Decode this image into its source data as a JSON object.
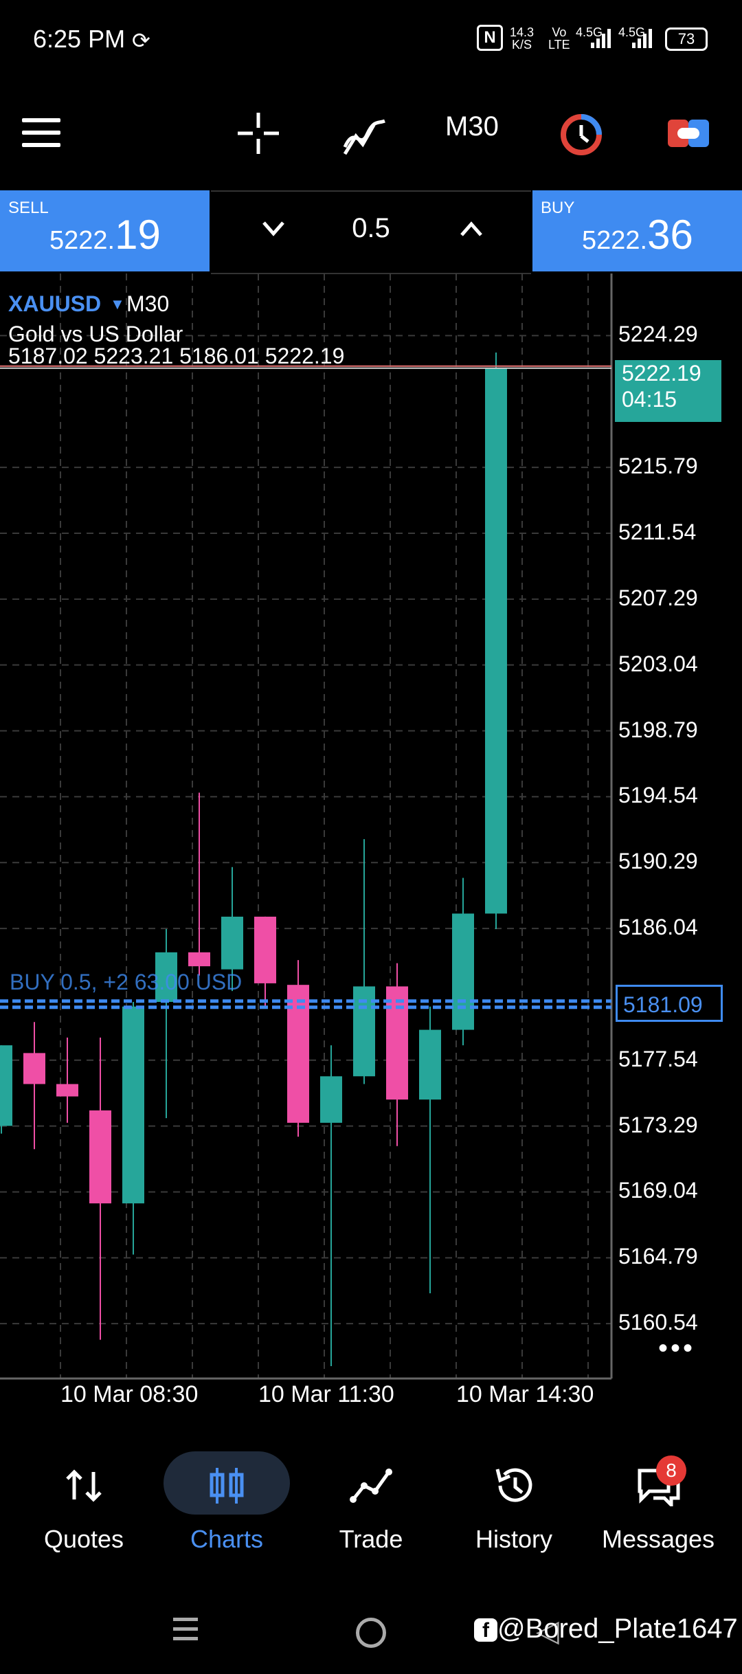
{
  "status_bar": {
    "time": "6:25 PM",
    "net_speed_top": "14.3",
    "net_speed_bottom": "K/S",
    "volte_top": "Vo",
    "volte_bottom": "LTE",
    "sim1_type": "4.5G",
    "sim2_type": "4.5G",
    "battery": "73"
  },
  "toolbar": {
    "timeframe": "M30"
  },
  "trade_panel": {
    "sell_label": "SELL",
    "sell_price_small": "5222.",
    "sell_price_big": "19",
    "lot": "0.5",
    "buy_label": "BUY",
    "buy_price_small": "5222.",
    "buy_price_big": "36"
  },
  "chart": {
    "symbol": "XAUUSD",
    "timeframe": "M30",
    "description": "Gold vs US Dollar",
    "ohlc": "5187.02 5223.21 5186.01 5222.19",
    "current_price": "5222.19",
    "countdown": "04:15",
    "buy_position_label": "BUY 0.5, +2 ",
    "buy_position_pnl": "63.00 USD",
    "buy_position_price": "5181.09",
    "y_labels": [
      "5224.29",
      "5215.79",
      "5211.54",
      "5207.29",
      "5203.04",
      "5198.79",
      "5194.54",
      "5190.29",
      "5186.04",
      "5177.54",
      "5173.29",
      "5169.04",
      "5164.79",
      "5160.54"
    ],
    "x_labels": [
      "10 Mar 08:30",
      "10 Mar 11:30",
      "10 Mar 14:30"
    ],
    "colors": {
      "bull": "#26a69a",
      "bear": "#ef4fa6",
      "grid": "#3a3a3a",
      "accent": "#3f8bf1"
    }
  },
  "chart_data": {
    "type": "candlestick",
    "symbol": "XAUUSD",
    "interval": "M30",
    "ylim": [
      5157,
      5228.3
    ],
    "candles": [
      {
        "o": 5173.3,
        "h": 5178.5,
        "l": 5172.8,
        "c": 5178.5
      },
      {
        "o": 5178.0,
        "h": 5180.0,
        "l": 5171.8,
        "c": 5176.0
      },
      {
        "o": 5176.0,
        "h": 5179.0,
        "l": 5173.5,
        "c": 5175.2
      },
      {
        "o": 5174.3,
        "h": 5179.0,
        "l": 5159.5,
        "c": 5168.3
      },
      {
        "o": 5168.3,
        "h": 5181.3,
        "l": 5165.0,
        "c": 5181.0
      },
      {
        "o": 5181.3,
        "h": 5186.0,
        "l": 5173.8,
        "c": 5184.5
      },
      {
        "o": 5184.5,
        "h": 5194.8,
        "l": 5183.0,
        "c": 5183.6
      },
      {
        "o": 5183.4,
        "h": 5190.0,
        "l": 5182.0,
        "c": 5186.8
      },
      {
        "o": 5186.8,
        "h": 5186.8,
        "l": 5181.0,
        "c": 5182.5
      },
      {
        "o": 5182.4,
        "h": 5184.0,
        "l": 5172.6,
        "c": 5173.5
      },
      {
        "o": 5173.5,
        "h": 5178.5,
        "l": 5157.8,
        "c": 5176.5
      },
      {
        "o": 5176.5,
        "h": 5191.8,
        "l": 5176.0,
        "c": 5182.3
      },
      {
        "o": 5182.3,
        "h": 5183.8,
        "l": 5172.0,
        "c": 5175.0
      },
      {
        "o": 5175.0,
        "h": 5181.0,
        "l": 5162.5,
        "c": 5179.5
      },
      {
        "o": 5179.5,
        "h": 5189.3,
        "l": 5178.5,
        "c": 5187.0
      },
      {
        "o": 5187.0,
        "h": 5223.2,
        "l": 5186.0,
        "c": 5222.2
      }
    ]
  }
}
